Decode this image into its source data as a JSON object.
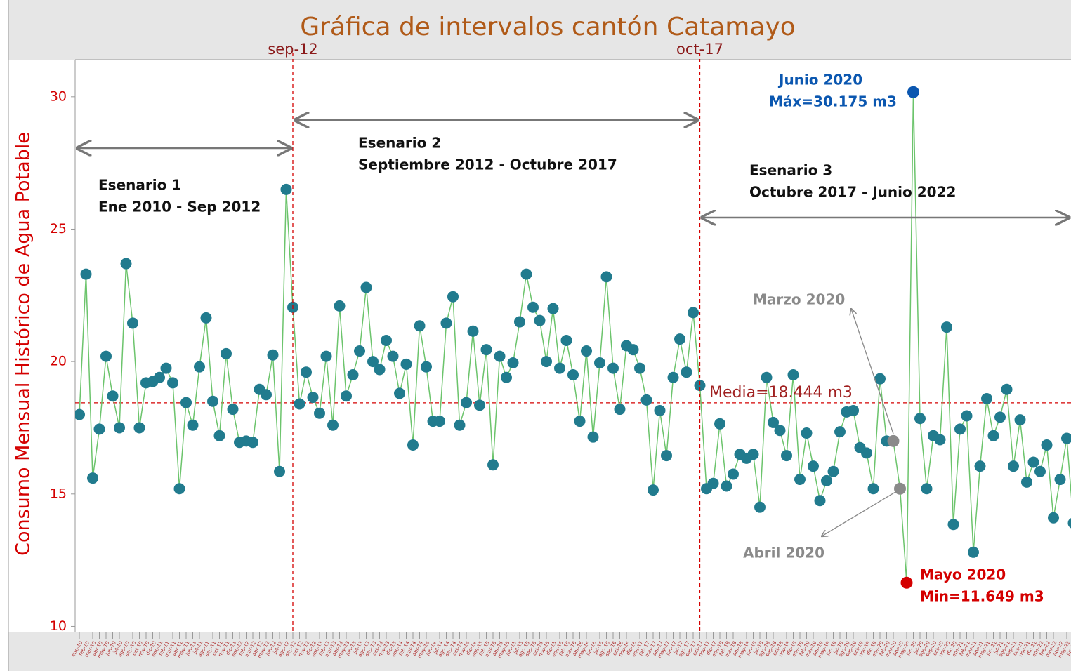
{
  "chart_data": {
    "type": "line",
    "title": "Gráfica de intervalos cantón Catamayo",
    "y_label": "Consumo Mensual Histórico de Agua Potable",
    "categories": [
      "ene-10",
      "feb-10",
      "mar-10",
      "abr-10",
      "may-10",
      "jun-10",
      "jul-10",
      "ago-10",
      "sep-10",
      "oct-10",
      "nov-10",
      "dic-10",
      "ene-11",
      "feb-11",
      "mar-11",
      "abr-11",
      "may-11",
      "jun-11",
      "jul-11",
      "ago-11",
      "sep-11",
      "oct-11",
      "nov-11",
      "dic-11",
      "ene-12",
      "feb-12",
      "mar-12",
      "abr-12",
      "may-12",
      "jun-12",
      "jul-12",
      "ago-12",
      "sep-12",
      "oct-12",
      "nov-12",
      "dic-12",
      "ene-13",
      "feb-13",
      "mar-13",
      "abr-13",
      "may-13",
      "jun-13",
      "jul-13",
      "ago-13",
      "sep-13",
      "oct-13",
      "nov-13",
      "dic-13",
      "ene-14",
      "feb-14",
      "mar-14",
      "abr-14",
      "may-14",
      "jun-14",
      "jul-14",
      "ago-14",
      "sep-14",
      "oct-14",
      "nov-14",
      "dic-14",
      "ene-15",
      "feb-15",
      "mar-15",
      "abr-15",
      "may-15",
      "jun-15",
      "jul-15",
      "ago-15",
      "sep-15",
      "oct-15",
      "nov-15",
      "dic-15",
      "ene-16",
      "feb-16",
      "mar-16",
      "abr-16",
      "may-16",
      "jun-16",
      "jul-16",
      "ago-16",
      "sep-16",
      "oct-16",
      "nov-16",
      "dic-16",
      "ene-17",
      "feb-17",
      "mar-17",
      "abr-17",
      "may-17",
      "jun-17",
      "jul-17",
      "ago-17",
      "sep-17",
      "oct-17",
      "nov-17",
      "dic-17",
      "ene-18",
      "feb-18",
      "mar-18",
      "abr-18",
      "may-18",
      "jun-18",
      "jul-18",
      "ago-18",
      "sep-18",
      "oct-18",
      "nov-18",
      "dic-18",
      "ene-19",
      "feb-19",
      "mar-19",
      "abr-19",
      "may-19",
      "jun-19",
      "jul-19",
      "ago-19",
      "sep-19",
      "oct-19",
      "nov-19",
      "dic-19",
      "ene-20",
      "feb-20",
      "mar-20",
      "abr-20",
      "may-20",
      "jun-20",
      "jul-20",
      "ago-20",
      "sep-20",
      "oct-20",
      "nov-20",
      "dic-20",
      "ene-21",
      "feb-21",
      "mar-21",
      "abr-21",
      "may-21",
      "jun-21",
      "jul-21",
      "ago-21",
      "sep-21",
      "oct-21",
      "nov-21",
      "dic-21",
      "ene-22",
      "feb-22",
      "mar-22",
      "abr-22",
      "may-22",
      "jun-22"
    ],
    "values": [
      18.0,
      23.3,
      15.6,
      17.45,
      20.2,
      18.7,
      17.5,
      23.7,
      21.45,
      17.5,
      19.2,
      19.25,
      19.4,
      19.75,
      19.2,
      15.2,
      18.45,
      17.6,
      19.8,
      21.65,
      18.5,
      17.2,
      20.3,
      18.2,
      16.95,
      17.0,
      16.95,
      18.95,
      18.75,
      20.25,
      15.85,
      26.5,
      22.05,
      18.4,
      19.6,
      18.65,
      18.05,
      20.2,
      17.6,
      22.1,
      18.7,
      19.5,
      20.4,
      22.8,
      20.0,
      19.7,
      20.8,
      20.2,
      18.8,
      19.9,
      16.85,
      21.35,
      19.8,
      17.75,
      17.75,
      21.45,
      22.45,
      17.6,
      18.45,
      21.15,
      18.35,
      20.45,
      16.1,
      20.2,
      19.4,
      19.95,
      21.5,
      23.3,
      22.05,
      21.55,
      20.0,
      22.0,
      19.75,
      20.8,
      19.5,
      17.75,
      20.4,
      17.15,
      19.95,
      23.2,
      19.75,
      18.2,
      20.6,
      20.45,
      19.75,
      18.55,
      15.15,
      18.15,
      16.45,
      19.4,
      20.85,
      19.6,
      21.85,
      19.1,
      15.2,
      15.4,
      17.65,
      15.3,
      15.75,
      16.5,
      16.35,
      16.5,
      14.5,
      19.4,
      17.7,
      17.4,
      16.45,
      19.5,
      15.55,
      17.3,
      16.05,
      14.75,
      15.5,
      15.85,
      17.35,
      18.1,
      18.15,
      16.75,
      16.55,
      15.2,
      19.35,
      17.0,
      17.0,
      15.2,
      11.649,
      30.175,
      17.85,
      15.2,
      17.2,
      17.05,
      21.3,
      13.85,
      17.45,
      17.95,
      12.8,
      16.05,
      18.6,
      17.2,
      17.9,
      18.95,
      16.05,
      17.8,
      15.45,
      16.2,
      15.85,
      16.85,
      14.1,
      15.55,
      17.1,
      13.9
    ],
    "color": "#217b8e",
    "line_color": "#6cc46c",
    "ylim": [
      9.8,
      31.4
    ],
    "yticks": [
      10,
      15,
      20,
      25,
      30
    ],
    "mean": {
      "value": 18.444,
      "label": "Media=18.444 m3"
    },
    "vlines": [
      "sep-12",
      "oct-17"
    ],
    "scenarios": [
      {
        "name": "Esenario 1",
        "period": "Ene 2010 - Sep 2012"
      },
      {
        "name": "Esenario 2",
        "period": "Septiembre 2012 - Octubre 2017"
      },
      {
        "name": "Esenario 3",
        "period": "Octubre 2017 - Junio 2022"
      }
    ],
    "annotations": [
      {
        "category": "jun-20",
        "lines": [
          "Junio 2020",
          "Máx=30.175 m3"
        ],
        "color": "#0b57b0"
      },
      {
        "category": "may-20",
        "lines": [
          "Mayo 2020",
          "Min=11.649 m3"
        ],
        "color": "#d40000"
      },
      {
        "category": "mar-20",
        "lines": [
          "Marzo 2020"
        ],
        "color": "#8a8a8a"
      },
      {
        "category": "abr-20",
        "lines": [
          "Abril 2020"
        ],
        "color": "#8a8a8a"
      }
    ]
  }
}
